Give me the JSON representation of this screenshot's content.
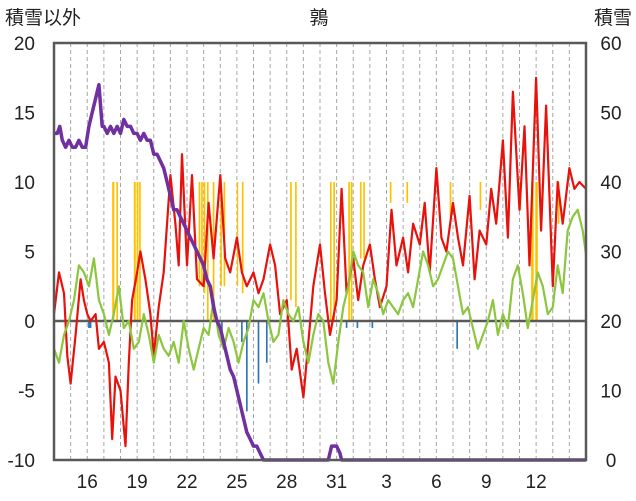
{
  "chart_data": {
    "type": "line",
    "title": "鶉",
    "ylabel_left": "積雪以外",
    "ylabel_right": "積雪",
    "ylim_left": [
      -10,
      20
    ],
    "ylim_right": [
      0,
      60
    ],
    "yticks_left": [
      20,
      15,
      10,
      5,
      0,
      -5,
      -10
    ],
    "yticks_right": [
      60,
      50,
      40,
      30,
      20,
      10,
      0
    ],
    "x_start": 14,
    "days": 32,
    "xtick_labels": [
      "16",
      "19",
      "22",
      "25",
      "28",
      "31",
      "3",
      "6",
      "9",
      "12"
    ],
    "xtick_days": [
      2,
      5,
      8,
      11,
      14,
      17,
      20,
      23,
      26,
      29
    ],
    "grid": true,
    "legend": "none",
    "colors": {
      "tmax": "#e8120c",
      "tmin": "#8cc63f",
      "snow_depth": "#7030a0",
      "precip": "#ffc000",
      "snow_change": "#2e75b6",
      "axis": "#595959",
      "grid": "#a6a6a6"
    },
    "series": [
      {
        "color_key": "tmax",
        "axis": "left",
        "x": [
          0,
          0.3,
          0.6,
          0.8,
          1.0,
          1.3,
          1.6,
          1.8,
          2.0,
          2.2,
          2.5,
          2.7,
          3.0,
          3.3,
          3.5,
          3.7,
          4.0,
          4.3,
          4.5,
          4.7,
          5.0,
          5.2,
          5.5,
          5.8,
          6.0,
          6.3,
          6.6,
          7.0,
          7.3,
          7.5,
          7.7,
          8.0,
          8.3,
          8.6,
          9.0,
          9.3,
          9.6,
          10.0,
          10.3,
          10.6,
          11.0,
          11.3,
          11.6,
          12.0,
          12.3,
          12.6,
          13.0,
          13.3,
          13.6,
          14.0,
          14.3,
          14.6,
          15.0,
          15.3,
          15.6,
          16.0,
          16.3,
          16.6,
          17.0,
          17.3,
          17.6,
          18.0,
          18.3,
          18.6,
          19.0,
          19.3,
          19.6,
          20.0,
          20.3,
          20.6,
          21.0,
          21.3,
          21.6,
          22.0,
          22.3,
          22.6,
          23.0,
          23.3,
          23.6,
          24.0,
          24.3,
          24.6,
          25.0,
          25.3,
          25.6,
          26.0,
          26.3,
          26.6,
          27.0,
          27.3,
          27.6,
          28.0,
          28.3,
          28.6,
          29.0,
          29.3,
          29.6,
          30.0,
          30.3,
          30.6,
          31.0,
          31.3,
          31.6,
          32.0
        ],
        "values": [
          0.5,
          3.5,
          2.0,
          -2.5,
          -4.5,
          -1.0,
          3.0,
          1.5,
          0.5,
          0.0,
          0.5,
          -2.0,
          -1.5,
          -3.0,
          -8.5,
          -4.0,
          -5.0,
          -9.0,
          -3.0,
          1.5,
          3.5,
          5.0,
          3.0,
          0.5,
          -2.5,
          1.0,
          3.5,
          10.5,
          7.0,
          4.0,
          12.0,
          4.0,
          10.5,
          3.0,
          2.5,
          8.5,
          4.5,
          10.5,
          4.5,
          3.5,
          6.0,
          3.5,
          2.5,
          3.5,
          2.0,
          3.0,
          5.5,
          4.0,
          0.5,
          1.5,
          -3.5,
          -2.0,
          -5.5,
          -1.5,
          2.5,
          5.5,
          2.0,
          -1.0,
          1.5,
          9.5,
          2.0,
          4.5,
          1.5,
          4.0,
          5.5,
          3.0,
          1.0,
          2.5,
          8.0,
          4.0,
          6.0,
          3.5,
          7.0,
          5.5,
          8.5,
          3.5,
          11.0,
          6.0,
          5.0,
          8.5,
          6.0,
          4.0,
          9.0,
          3.0,
          6.5,
          5.5,
          9.5,
          7.0,
          13.0,
          6.0,
          16.5,
          8.0,
          14.0,
          4.0,
          17.5,
          6.5,
          15.5,
          2.5,
          10.0,
          7.0,
          11.0,
          9.5,
          10.0,
          9.5
        ]
      },
      {
        "color_key": "tmin",
        "axis": "left",
        "x": [
          0,
          0.3,
          0.6,
          0.9,
          1.2,
          1.5,
          1.8,
          2.1,
          2.4,
          2.7,
          3.0,
          3.3,
          3.6,
          3.9,
          4.2,
          4.5,
          4.8,
          5.1,
          5.4,
          5.7,
          6.0,
          6.3,
          6.6,
          6.9,
          7.2,
          7.5,
          7.8,
          8.1,
          8.4,
          8.7,
          9.0,
          9.3,
          9.6,
          9.9,
          10.2,
          10.5,
          10.8,
          11.1,
          11.4,
          11.7,
          12.0,
          12.3,
          12.6,
          12.9,
          13.2,
          13.5,
          13.8,
          14.1,
          14.4,
          14.7,
          15.0,
          15.3,
          15.6,
          15.9,
          16.2,
          16.5,
          16.8,
          17.1,
          17.4,
          17.7,
          18.0,
          18.3,
          18.6,
          18.9,
          19.2,
          19.5,
          19.8,
          20.1,
          20.4,
          20.7,
          21.0,
          21.3,
          21.6,
          21.9,
          22.2,
          22.5,
          22.8,
          23.1,
          23.4,
          23.7,
          24.0,
          24.3,
          24.6,
          24.9,
          25.2,
          25.5,
          25.8,
          26.1,
          26.4,
          26.7,
          27.0,
          27.3,
          27.6,
          27.9,
          28.2,
          28.5,
          28.8,
          29.1,
          29.4,
          29.7,
          30.0,
          30.3,
          30.6,
          30.9,
          31.2,
          31.5,
          31.8,
          32.0
        ],
        "values": [
          -2.0,
          -3.0,
          -1.0,
          0.0,
          1.5,
          4.0,
          3.5,
          2.5,
          4.5,
          1.5,
          0.5,
          -1.0,
          0.5,
          2.5,
          -0.5,
          0.0,
          -2.0,
          -1.5,
          0.5,
          -1.0,
          -3.0,
          -1.0,
          -2.0,
          -2.5,
          -1.5,
          -3.0,
          0.0,
          -2.0,
          -3.5,
          -2.0,
          -0.5,
          -1.0,
          1.5,
          -1.0,
          -2.0,
          -0.5,
          -1.5,
          -3.0,
          -1.5,
          -0.5,
          1.5,
          1.0,
          2.0,
          0.0,
          -1.5,
          -1.0,
          1.5,
          0.5,
          0.0,
          1.0,
          -1.5,
          -3.0,
          -1.0,
          0.5,
          0.0,
          -3.0,
          -4.5,
          -1.5,
          1.0,
          2.5,
          5.0,
          4.0,
          3.5,
          1.0,
          3.0,
          2.0,
          0.5,
          1.5,
          1.0,
          0.5,
          1.5,
          2.0,
          1.0,
          3.0,
          5.0,
          4.0,
          2.5,
          3.0,
          4.0,
          5.0,
          4.5,
          2.5,
          0.5,
          1.0,
          -0.5,
          -2.0,
          -1.0,
          0.0,
          1.5,
          -1.0,
          0.5,
          -0.5,
          3.0,
          4.0,
          2.0,
          -0.5,
          1.5,
          3.5,
          2.5,
          0.5,
          1.0,
          4.0,
          2.0,
          6.5,
          7.5,
          8.0,
          6.5,
          4.8
        ]
      },
      {
        "color_key": "snow_depth",
        "axis": "right",
        "x": [
          0,
          0.2,
          0.35,
          0.5,
          0.7,
          0.9,
          1.1,
          1.3,
          1.5,
          1.7,
          1.9,
          2.1,
          2.3,
          2.5,
          2.7,
          2.9,
          3.0,
          3.2,
          3.4,
          3.6,
          3.8,
          4.0,
          4.2,
          4.4,
          4.6,
          4.8,
          5.0,
          5.2,
          5.4,
          5.6,
          5.8,
          6.0,
          6.2,
          6.4,
          6.6,
          6.8,
          7.0,
          7.2,
          7.4,
          7.6,
          7.8,
          8.0,
          8.2,
          8.4,
          8.6,
          8.8,
          9.0,
          9.2,
          9.4,
          9.6,
          9.8,
          10.0,
          10.2,
          10.4,
          10.6,
          10.8,
          11.0,
          11.2,
          11.4,
          11.6,
          11.8,
          12.0,
          12.2,
          12.4,
          12.6,
          12.8,
          13.0,
          13.2,
          13.4,
          16.3,
          16.5,
          16.7,
          17.0,
          17.2,
          17.3,
          17.5,
          18.0,
          32.0
        ],
        "values": [
          47,
          47,
          48,
          46,
          45,
          46,
          45,
          45,
          46,
          45,
          45,
          48,
          50,
          52,
          54,
          48,
          48,
          47,
          48,
          47,
          48,
          47,
          49,
          48,
          48,
          47,
          47,
          46,
          47,
          46,
          46,
          44,
          44,
          43,
          42,
          40,
          38,
          36,
          36,
          35,
          34,
          33,
          32,
          31,
          30,
          29,
          28,
          26,
          25,
          22,
          20,
          19,
          17,
          15,
          13,
          12,
          10,
          8,
          6,
          4,
          3,
          2,
          2,
          1,
          0,
          0,
          0,
          0,
          0,
          0,
          0,
          2,
          2,
          1,
          0,
          0,
          0,
          0
        ]
      }
    ],
    "bars": [
      {
        "color_key": "precip",
        "axis": "left",
        "start": [
          3.5,
          3.75,
          4.8,
          4.97,
          5.12,
          8.7,
          8.85,
          9.0,
          9.2,
          9.55,
          10.0,
          10.2,
          11.0,
          11.3,
          14.2,
          14.5,
          16.6,
          16.8,
          17.7,
          17.85,
          18.4,
          18.6,
          20.2,
          21.2,
          23.8,
          25.6,
          28.0,
          28.7,
          28.95,
          30.3
        ],
        "end": [
          3.63,
          3.85,
          4.92,
          5.08,
          5.22,
          8.8,
          8.95,
          9.1,
          9.3,
          9.65,
          10.1,
          10.3,
          11.08,
          11.4,
          14.3,
          14.6,
          16.7,
          16.9,
          17.8,
          17.95,
          18.5,
          18.7,
          20.3,
          21.3,
          23.9,
          25.7,
          28.1,
          28.85,
          29.1,
          30.4
        ],
        "top": [
          10,
          10,
          10,
          10,
          10,
          10,
          10,
          10,
          10,
          10,
          10,
          10,
          10,
          10,
          10,
          10,
          10,
          10,
          10,
          10,
          10,
          10,
          10,
          10,
          10,
          10,
          10,
          10,
          10,
          10
        ],
        "bottom": [
          0,
          0,
          0,
          0,
          0,
          2.5,
          2.5,
          2.0,
          0,
          0,
          2.5,
          2.5,
          2.5,
          2.0,
          1.5,
          1.0,
          0,
          0,
          0,
          0,
          4.5,
          4.5,
          8.5,
          8.5,
          7.5,
          8.0,
          8.0,
          0,
          0,
          7.0
        ]
      },
      {
        "color_key": "snow_change",
        "axis": "left",
        "start": [
          2.05,
          3.1,
          10.05,
          11.25,
          11.55,
          12.25,
          12.75,
          17.55,
          18.2,
          19.1,
          24.2
        ],
        "end": [
          2.25,
          3.2,
          10.15,
          11.35,
          11.65,
          12.35,
          12.85,
          17.65,
          18.3,
          19.2,
          24.3
        ],
        "top": [
          0,
          0,
          0,
          0,
          0,
          0,
          0,
          0,
          0,
          0,
          0
        ],
        "bottom": [
          -0.5,
          -0.5,
          -1.0,
          -1.5,
          -6.5,
          -4.5,
          -3.0,
          -0.5,
          -0.5,
          -0.5,
          -2.0
        ]
      }
    ]
  }
}
